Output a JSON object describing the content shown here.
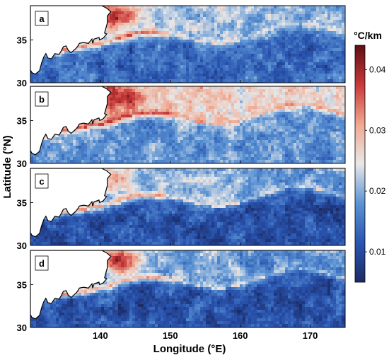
{
  "chart_data": {
    "type": "heatmap",
    "title": "",
    "xlabel": "Longitude (°E)",
    "ylabel": "Latitude (°N)",
    "x_ticks": [
      140,
      150,
      160,
      170
    ],
    "y_ticks": [
      30,
      35
    ],
    "xlim": [
      130,
      175
    ],
    "ylim": [
      30,
      39
    ],
    "colorbar": {
      "label": "°C/km",
      "ticks": [
        "0.01",
        "0.02",
        "0.03",
        "0.04"
      ],
      "tick_values": [
        0.01,
        0.02,
        0.03,
        0.04
      ],
      "range": [
        0.005,
        0.044
      ],
      "colors": [
        "#1b2b66",
        "#2a55b0",
        "#5b93d4",
        "#e8e8e8",
        "#f0a890",
        "#c8393a",
        "#5e0f14"
      ]
    },
    "panels": [
      {
        "label": "a",
        "kuroshio_front_strength": 0.04,
        "offshore_mean": 0.014,
        "north_mean": 0.022
      },
      {
        "label": "b",
        "kuroshio_front_strength": 0.042,
        "offshore_mean": 0.018,
        "north_mean": 0.028
      },
      {
        "label": "c",
        "kuroshio_front_strength": 0.03,
        "offshore_mean": 0.011,
        "north_mean": 0.021
      },
      {
        "label": "d",
        "kuroshio_front_strength": 0.04,
        "offshore_mean": 0.011,
        "north_mean": 0.02
      }
    ],
    "land_color": "#ffffff"
  }
}
